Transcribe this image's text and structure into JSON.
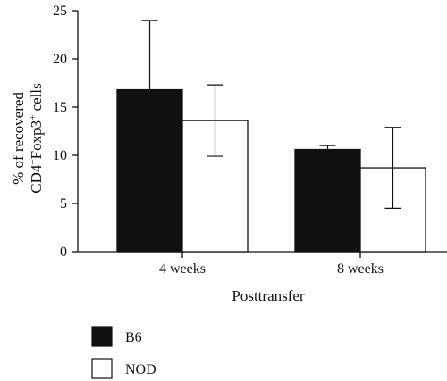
{
  "chart_data": {
    "type": "bar",
    "categories": [
      "4 weeks",
      "8 weeks"
    ],
    "series": [
      {
        "name": "B6",
        "values": [
          16.8,
          10.6
        ],
        "error": [
          7.2,
          0.4
        ],
        "color": "#111111"
      },
      {
        "name": "NOD",
        "values": [
          13.6,
          8.7
        ],
        "error": [
          3.7,
          4.2
        ],
        "color": "#ffffff"
      }
    ],
    "xlabel": "Posttransfer",
    "ylabel": {
      "line1": "% of recovered",
      "line2_base1": "CD4",
      "line2_sup1": "+",
      "line2_base2": "Foxp3",
      "line2_sup2": "+",
      "line2_tail": " cells"
    },
    "ylim": [
      0,
      25
    ],
    "yticks": [
      "0",
      "5",
      "10",
      "15",
      "20",
      "25"
    ],
    "grid": false,
    "legend_position": "bottom-left"
  }
}
